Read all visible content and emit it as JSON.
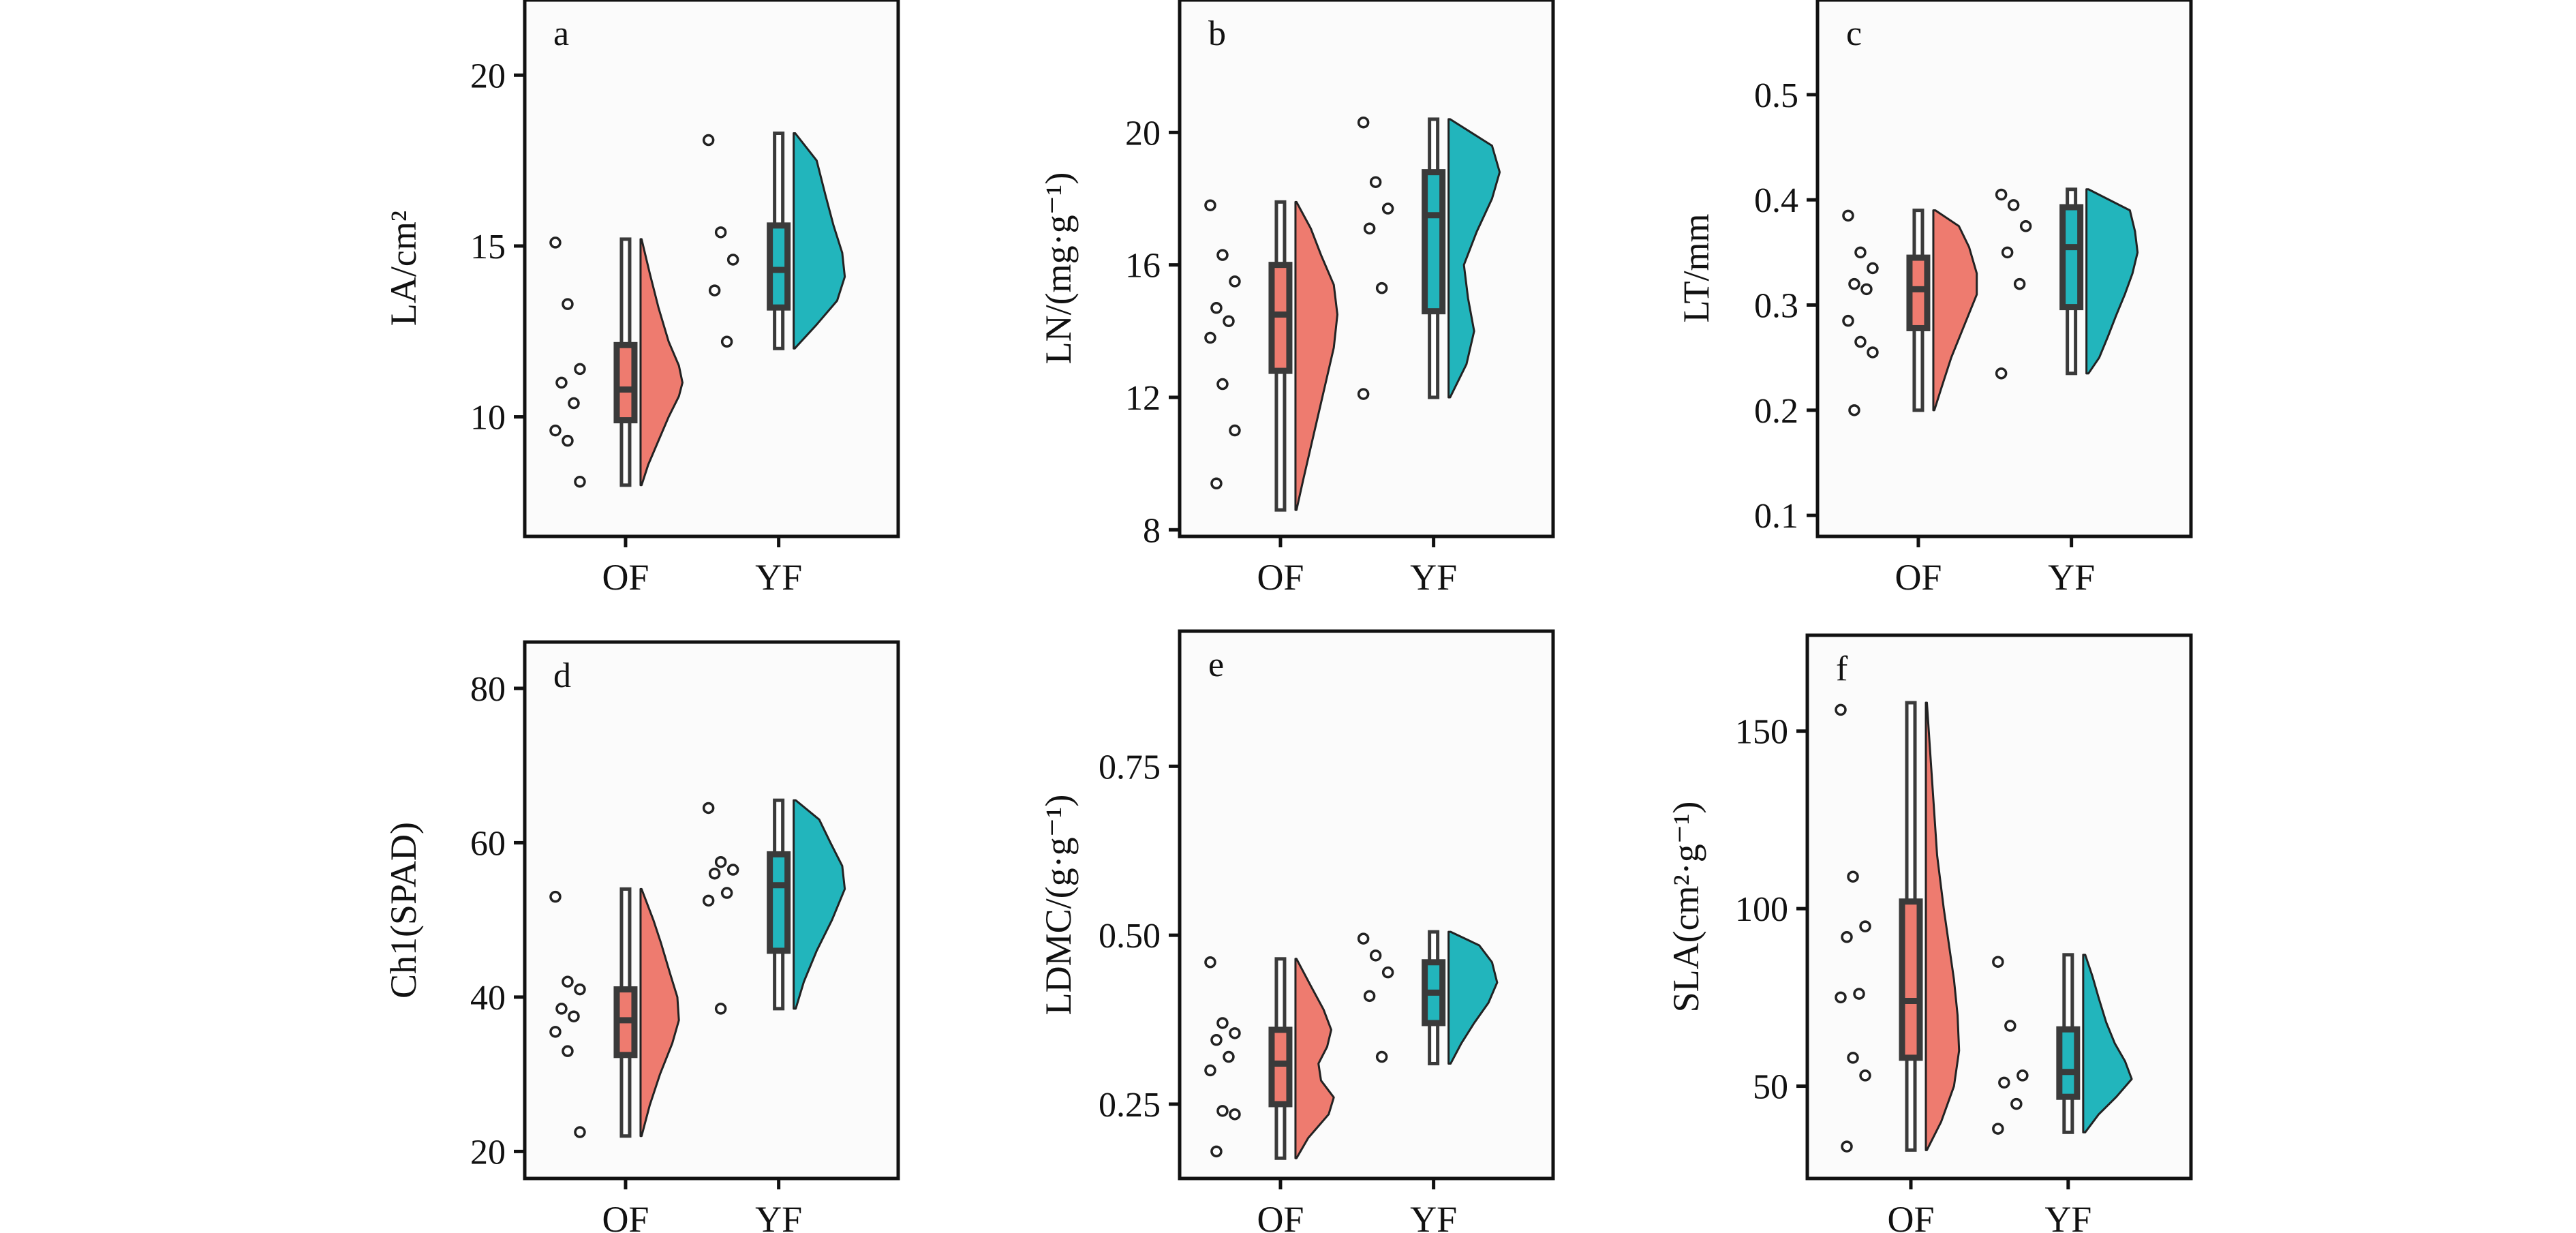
{
  "figure": {
    "colors": {
      "OF": "#EE7B6F",
      "YF": "#22B5BC",
      "box": "#3a3a3a",
      "panel_bg": "#fbfbfb"
    }
  },
  "chart_data": [
    {
      "type": "raincloud",
      "panel_label": "a",
      "ylabel": "LA/cm²",
      "categories": [
        "OF",
        "YF"
      ],
      "ylim": [
        6.5,
        22.2
      ],
      "yticks": [
        10,
        15,
        20
      ],
      "tick_labels": [
        "10",
        "15",
        "20"
      ],
      "series": [
        {
          "name": "OF",
          "points": [
            15.1,
            13.3,
            11.4,
            11.0,
            10.4,
            9.6,
            9.3,
            8.1
          ],
          "box": {
            "min": 8.0,
            "q1": 9.9,
            "median": 10.8,
            "q3": 12.1,
            "max": 15.2
          },
          "density": [
            [
              8.0,
              0.02
            ],
            [
              8.6,
              0.15
            ],
            [
              9.3,
              0.35
            ],
            [
              10.0,
              0.55
            ],
            [
              10.6,
              0.75
            ],
            [
              11.0,
              0.82
            ],
            [
              11.5,
              0.75
            ],
            [
              12.2,
              0.55
            ],
            [
              13.2,
              0.35
            ],
            [
              14.2,
              0.18
            ],
            [
              15.2,
              0.02
            ]
          ]
        },
        {
          "name": "YF",
          "points": [
            18.1,
            15.4,
            14.6,
            13.7,
            12.2
          ],
          "box": {
            "min": 12.0,
            "q1": 13.2,
            "median": 14.3,
            "q3": 15.6,
            "max": 18.3
          },
          "density": [
            [
              12.0,
              0.02
            ],
            [
              12.7,
              0.45
            ],
            [
              13.4,
              0.85
            ],
            [
              14.1,
              1.0
            ],
            [
              14.8,
              0.95
            ],
            [
              15.6,
              0.78
            ],
            [
              16.5,
              0.62
            ],
            [
              17.5,
              0.45
            ],
            [
              18.3,
              0.03
            ]
          ]
        }
      ]
    },
    {
      "type": "raincloud",
      "panel_label": "b",
      "ylabel": "LN/(mg·g⁻¹)",
      "categories": [
        "OF",
        "YF"
      ],
      "ylim": [
        7.8,
        24.0
      ],
      "yticks": [
        8,
        12,
        16,
        20
      ],
      "tick_labels": [
        "8",
        "12",
        "16",
        "20"
      ],
      "series": [
        {
          "name": "OF",
          "points": [
            17.8,
            16.3,
            15.5,
            14.7,
            14.3,
            13.8,
            12.4,
            11.0,
            9.4
          ],
          "box": {
            "min": 8.6,
            "q1": 12.8,
            "median": 14.5,
            "q3": 16.0,
            "max": 17.9
          },
          "density": [
            [
              8.6,
              0.02
            ],
            [
              9.5,
              0.15
            ],
            [
              10.5,
              0.3
            ],
            [
              11.5,
              0.45
            ],
            [
              12.5,
              0.6
            ],
            [
              13.5,
              0.75
            ],
            [
              14.5,
              0.82
            ],
            [
              15.4,
              0.75
            ],
            [
              16.3,
              0.5
            ],
            [
              17.1,
              0.3
            ],
            [
              17.9,
              0.02
            ]
          ]
        },
        {
          "name": "YF",
          "points": [
            20.3,
            18.5,
            17.7,
            17.1,
            15.3,
            12.1
          ],
          "box": {
            "min": 12.0,
            "q1": 14.6,
            "median": 17.5,
            "q3": 18.8,
            "max": 20.4
          },
          "density": [
            [
              12.0,
              0.03
            ],
            [
              13.0,
              0.35
            ],
            [
              14.0,
              0.5
            ],
            [
              15.0,
              0.38
            ],
            [
              16.0,
              0.3
            ],
            [
              17.0,
              0.55
            ],
            [
              18.0,
              0.85
            ],
            [
              18.8,
              1.0
            ],
            [
              19.6,
              0.85
            ],
            [
              20.4,
              0.03
            ]
          ]
        }
      ]
    },
    {
      "type": "raincloud",
      "panel_label": "c",
      "ylabel": "LT/mm",
      "categories": [
        "OF",
        "YF"
      ],
      "ylim": [
        0.08,
        0.59
      ],
      "yticks": [
        0.1,
        0.2,
        0.3,
        0.4,
        0.5
      ],
      "tick_labels": [
        "0.1",
        "0.2",
        "0.3",
        "0.4",
        "0.5"
      ],
      "series": [
        {
          "name": "OF",
          "points": [
            0.385,
            0.35,
            0.335,
            0.32,
            0.315,
            0.285,
            0.265,
            0.255,
            0.2
          ],
          "box": {
            "min": 0.2,
            "q1": 0.278,
            "median": 0.315,
            "q3": 0.345,
            "max": 0.39
          },
          "density": [
            [
              0.2,
              0.02
            ],
            [
              0.22,
              0.15
            ],
            [
              0.25,
              0.35
            ],
            [
              0.28,
              0.6
            ],
            [
              0.31,
              0.85
            ],
            [
              0.33,
              0.85
            ],
            [
              0.355,
              0.7
            ],
            [
              0.375,
              0.5
            ],
            [
              0.39,
              0.04
            ]
          ]
        },
        {
          "name": "YF",
          "points": [
            0.405,
            0.395,
            0.375,
            0.35,
            0.32,
            0.235
          ],
          "box": {
            "min": 0.235,
            "q1": 0.298,
            "median": 0.355,
            "q3": 0.393,
            "max": 0.41
          },
          "density": [
            [
              0.235,
              0.04
            ],
            [
              0.25,
              0.25
            ],
            [
              0.27,
              0.42
            ],
            [
              0.29,
              0.58
            ],
            [
              0.31,
              0.75
            ],
            [
              0.33,
              0.9
            ],
            [
              0.35,
              1.0
            ],
            [
              0.37,
              0.95
            ],
            [
              0.39,
              0.85
            ],
            [
              0.41,
              0.04
            ]
          ]
        }
      ]
    },
    {
      "type": "raincloud",
      "panel_label": "d",
      "ylabel": "Ch1(SPAD)",
      "categories": [
        "OF",
        "YF"
      ],
      "ylim": [
        16.5,
        86.0
      ],
      "yticks": [
        20,
        40,
        60,
        80
      ],
      "tick_labels": [
        "20",
        "40",
        "60",
        "80"
      ],
      "series": [
        {
          "name": "OF",
          "points": [
            53.0,
            42.0,
            41.0,
            38.5,
            37.5,
            35.5,
            33.0,
            22.5
          ],
          "box": {
            "min": 22.0,
            "q1": 32.5,
            "median": 37.0,
            "q3": 41.0,
            "max": 54.0
          },
          "density": [
            [
              22.0,
              0.02
            ],
            [
              26.0,
              0.18
            ],
            [
              30.0,
              0.38
            ],
            [
              34.0,
              0.62
            ],
            [
              37.0,
              0.75
            ],
            [
              40.0,
              0.72
            ],
            [
              43.0,
              0.58
            ],
            [
              47.0,
              0.4
            ],
            [
              50.0,
              0.25
            ],
            [
              54.0,
              0.02
            ]
          ]
        },
        {
          "name": "YF",
          "points": [
            64.5,
            57.5,
            56.5,
            56.0,
            53.5,
            52.5,
            38.5
          ],
          "box": {
            "min": 38.5,
            "q1": 46.0,
            "median": 54.5,
            "q3": 58.5,
            "max": 65.5
          },
          "density": [
            [
              38.5,
              0.04
            ],
            [
              42.0,
              0.2
            ],
            [
              46.0,
              0.45
            ],
            [
              50.0,
              0.75
            ],
            [
              54.0,
              1.0
            ],
            [
              57.0,
              0.95
            ],
            [
              60.0,
              0.72
            ],
            [
              63.0,
              0.5
            ],
            [
              65.5,
              0.04
            ]
          ]
        }
      ]
    },
    {
      "type": "raincloud",
      "panel_label": "e",
      "ylabel": "LDMC/(g·g⁻¹)",
      "categories": [
        "OF",
        "YF"
      ],
      "ylim": [
        0.14,
        0.95
      ],
      "yticks": [
        0.25,
        0.5,
        0.75
      ],
      "tick_labels": [
        "0.25",
        "0.50",
        "0.75"
      ],
      "series": [
        {
          "name": "OF",
          "points": [
            0.46,
            0.37,
            0.355,
            0.345,
            0.32,
            0.3,
            0.24,
            0.235,
            0.18
          ],
          "box": {
            "min": 0.17,
            "q1": 0.25,
            "median": 0.31,
            "q3": 0.36,
            "max": 0.465
          },
          "density": [
            [
              0.17,
              0.02
            ],
            [
              0.2,
              0.25
            ],
            [
              0.235,
              0.65
            ],
            [
              0.26,
              0.75
            ],
            [
              0.285,
              0.5
            ],
            [
              0.31,
              0.45
            ],
            [
              0.335,
              0.62
            ],
            [
              0.36,
              0.7
            ],
            [
              0.39,
              0.55
            ],
            [
              0.425,
              0.3
            ],
            [
              0.465,
              0.02
            ]
          ]
        },
        {
          "name": "YF",
          "points": [
            0.495,
            0.47,
            0.445,
            0.41,
            0.32
          ],
          "box": {
            "min": 0.31,
            "q1": 0.37,
            "median": 0.415,
            "q3": 0.46,
            "max": 0.505
          },
          "density": [
            [
              0.31,
              0.04
            ],
            [
              0.34,
              0.25
            ],
            [
              0.37,
              0.5
            ],
            [
              0.4,
              0.78
            ],
            [
              0.43,
              0.95
            ],
            [
              0.46,
              0.85
            ],
            [
              0.485,
              0.6
            ],
            [
              0.505,
              0.04
            ]
          ]
        }
      ]
    },
    {
      "type": "raincloud",
      "panel_label": "f",
      "ylabel": "SLA(cm²·g⁻¹)",
      "categories": [
        "OF",
        "YF"
      ],
      "ylim": [
        24,
        177
      ],
      "yticks": [
        50,
        100,
        150
      ],
      "tick_labels": [
        "50",
        "100",
        "150"
      ],
      "series": [
        {
          "name": "OF",
          "points": [
            156,
            109,
            95,
            92,
            76,
            75,
            58,
            53,
            33
          ],
          "box": {
            "min": 32,
            "q1": 58,
            "median": 74,
            "q3": 102,
            "max": 158
          },
          "density": [
            [
              32,
              0.02
            ],
            [
              40,
              0.3
            ],
            [
              50,
              0.55
            ],
            [
              60,
              0.65
            ],
            [
              70,
              0.62
            ],
            [
              80,
              0.55
            ],
            [
              90,
              0.45
            ],
            [
              100,
              0.35
            ],
            [
              115,
              0.22
            ],
            [
              130,
              0.15
            ],
            [
              145,
              0.08
            ],
            [
              158,
              0.02
            ]
          ]
        },
        {
          "name": "YF",
          "points": [
            85,
            67,
            53,
            51,
            45,
            38
          ],
          "box": {
            "min": 37,
            "q1": 47,
            "median": 54,
            "q3": 66,
            "max": 87
          },
          "density": [
            [
              37,
              0.04
            ],
            [
              42,
              0.3
            ],
            [
              47,
              0.65
            ],
            [
              52,
              0.95
            ],
            [
              57,
              0.82
            ],
            [
              62,
              0.62
            ],
            [
              68,
              0.45
            ],
            [
              75,
              0.3
            ],
            [
              81,
              0.18
            ],
            [
              87,
              0.04
            ]
          ]
        }
      ]
    }
  ]
}
